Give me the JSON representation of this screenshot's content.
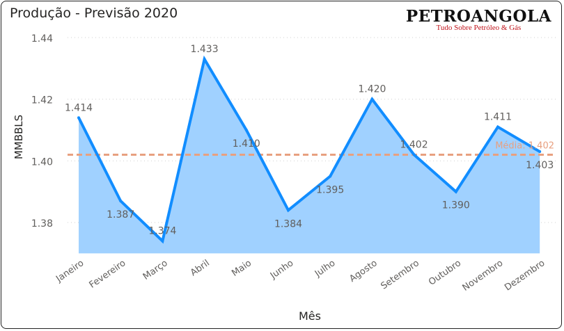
{
  "chart_data": {
    "type": "area",
    "title": "Produção - Previsão 2020",
    "xlabel": "Mês",
    "ylabel": "MMBBLS",
    "categories": [
      "Janeiro",
      "Fevereiro",
      "Março",
      "Abril",
      "Maio",
      "Junho",
      "Julho",
      "Agosto",
      "Setembro",
      "Outubro",
      "Novembro",
      "Dezembro"
    ],
    "values": [
      1.414,
      1.387,
      1.374,
      1.433,
      1.41,
      1.384,
      1.395,
      1.42,
      1.402,
      1.39,
      1.411,
      1.403
    ],
    "labels": [
      "1.414",
      "1.387",
      "1.374",
      "1.433",
      "1.410",
      "1.384",
      "1.395",
      "1.420",
      "1.402",
      "1.390",
      "1.411",
      "1.403"
    ],
    "ylim": [
      1.37,
      1.44
    ],
    "yticks": [
      1.38,
      1.4,
      1.42,
      1.44
    ],
    "ytick_labels": [
      "1.38",
      "1.40",
      "1.42",
      "1.44"
    ],
    "grid": true,
    "average": {
      "value": 1.402,
      "label": "Média: 1.402"
    },
    "colors": {
      "line": "#118DFF",
      "fill": "#A0D1FF",
      "average": "#E8A080"
    }
  },
  "logo": {
    "name": "PETROANGOLA",
    "tagline": "Tudo Sobre Petróleo & Gás"
  }
}
